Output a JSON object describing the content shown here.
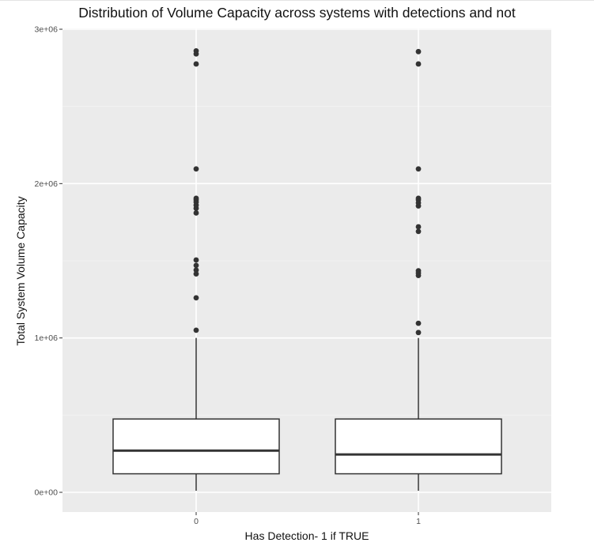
{
  "chart_data": {
    "type": "boxplot",
    "title": "Distribution of Volume Capacity across systems with detections and not",
    "xlabel": "Has Detection- 1 if TRUE",
    "ylabel": "Total System Volume Capacity",
    "categories": [
      "0",
      "1"
    ],
    "y_ticks": [
      {
        "value": 0,
        "label": "0e+00"
      },
      {
        "value": 1000000,
        "label": "1e+06"
      },
      {
        "value": 2000000,
        "label": "2e+06"
      },
      {
        "value": 3000000,
        "label": "3e+06"
      }
    ],
    "ylim": [
      -130000,
      3000000
    ],
    "grid": true,
    "boxes": [
      {
        "category": "0",
        "whisker_low": 10000,
        "q1": 120000,
        "median": 270000,
        "q3": 475000,
        "whisker_high": 1000000,
        "outliers": [
          1050000,
          1260000,
          1415000,
          1440000,
          1470000,
          1505000,
          1810000,
          1840000,
          1860000,
          1880000,
          1895000,
          1905000,
          2095000,
          2775000,
          2840000,
          2860000
        ]
      },
      {
        "category": "1",
        "whisker_low": 10000,
        "q1": 120000,
        "median": 245000,
        "q3": 475000,
        "whisker_high": 1000000,
        "outliers": [
          1035000,
          1095000,
          1405000,
          1420000,
          1435000,
          1690000,
          1720000,
          1855000,
          1875000,
          1895000,
          1905000,
          2095000,
          2775000,
          2855000
        ]
      }
    ],
    "colors": {
      "panel_background": "#ebebeb",
      "grid_major": "#ffffff",
      "grid_minor": "#f2f2f2",
      "box_fill": "#ffffff",
      "box_stroke": "#333333",
      "outlier": "#333333"
    }
  }
}
